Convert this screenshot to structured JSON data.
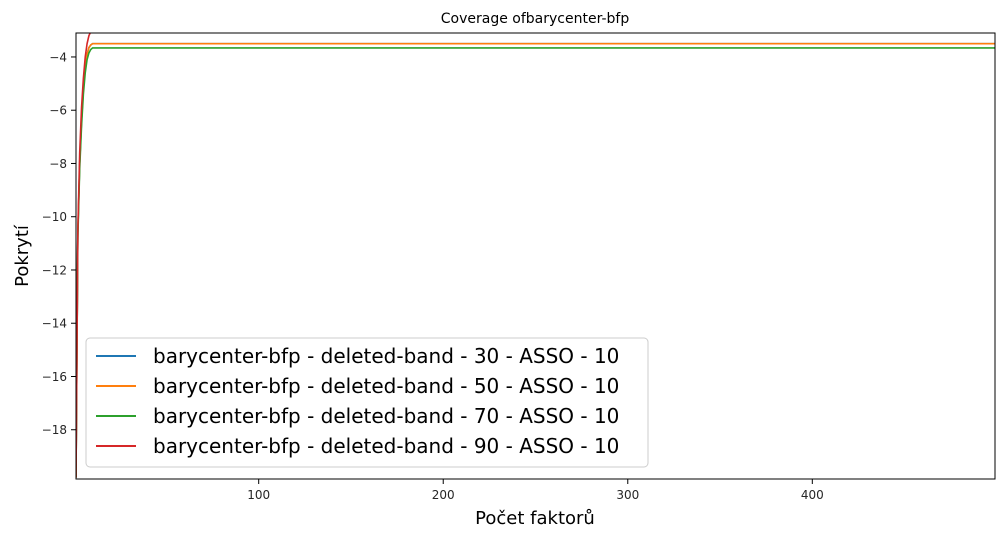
{
  "chart_data": {
    "type": "line",
    "title": "Coverage ofbarycenter-bfp",
    "xlabel": "Počet faktorů",
    "ylabel": "Pokrytí",
    "xlim": [
      1,
      499
    ],
    "ylim": [
      -19.85,
      -3.1
    ],
    "xticks": [
      100,
      200,
      300,
      400
    ],
    "yticks": [
      -18,
      -16,
      -14,
      -12,
      -10,
      -8,
      -6,
      -4
    ],
    "xtick_labels": [
      "100",
      "200",
      "300",
      "400"
    ],
    "ytick_labels": [
      "−18",
      "−16",
      "−14",
      "−12",
      "−10",
      "−8",
      "−6",
      "−4"
    ],
    "grid": false,
    "legend_position": "lower-left",
    "series": [
      {
        "name": "barycenter-bfp - deleted-band - 30 - ASSO - 10",
        "color": "#1f77b4",
        "x": [
          1,
          2,
          3,
          4,
          5,
          6,
          7,
          8,
          9,
          10,
          499
        ],
        "y": [
          -19.8,
          -10.6,
          -8.0,
          -6.4,
          -5.2,
          -4.4,
          -3.9,
          -3.65,
          -3.55,
          -3.5,
          -3.5
        ]
      },
      {
        "name": "barycenter-bfp - deleted-band - 50 - ASSO - 10",
        "color": "#ff7f0e",
        "x": [
          1,
          2,
          3,
          4,
          5,
          6,
          7,
          8,
          9,
          10,
          499
        ],
        "y": [
          -19.8,
          -10.6,
          -8.0,
          -6.4,
          -5.2,
          -4.4,
          -3.9,
          -3.65,
          -3.55,
          -3.5,
          -3.5
        ]
      },
      {
        "name": "barycenter-bfp - deleted-band - 70 - ASSO - 10",
        "color": "#2ca02c",
        "x": [
          1,
          2,
          3,
          4,
          5,
          6,
          7,
          8,
          9,
          10,
          499
        ],
        "y": [
          -19.8,
          -10.8,
          -8.2,
          -6.6,
          -5.4,
          -4.6,
          -4.1,
          -3.85,
          -3.72,
          -3.66,
          -3.66
        ]
      },
      {
        "name": "barycenter-bfp - deleted-band - 90 - ASSO - 10",
        "color": "#d62728",
        "x": [
          1,
          2,
          3,
          4,
          5,
          6,
          7,
          8,
          9,
          10
        ],
        "y": [
          -19.8,
          -10.5,
          -7.6,
          -5.9,
          -4.8,
          -4.0,
          -3.5,
          -3.2,
          -3.05,
          -2.9
        ]
      }
    ]
  }
}
